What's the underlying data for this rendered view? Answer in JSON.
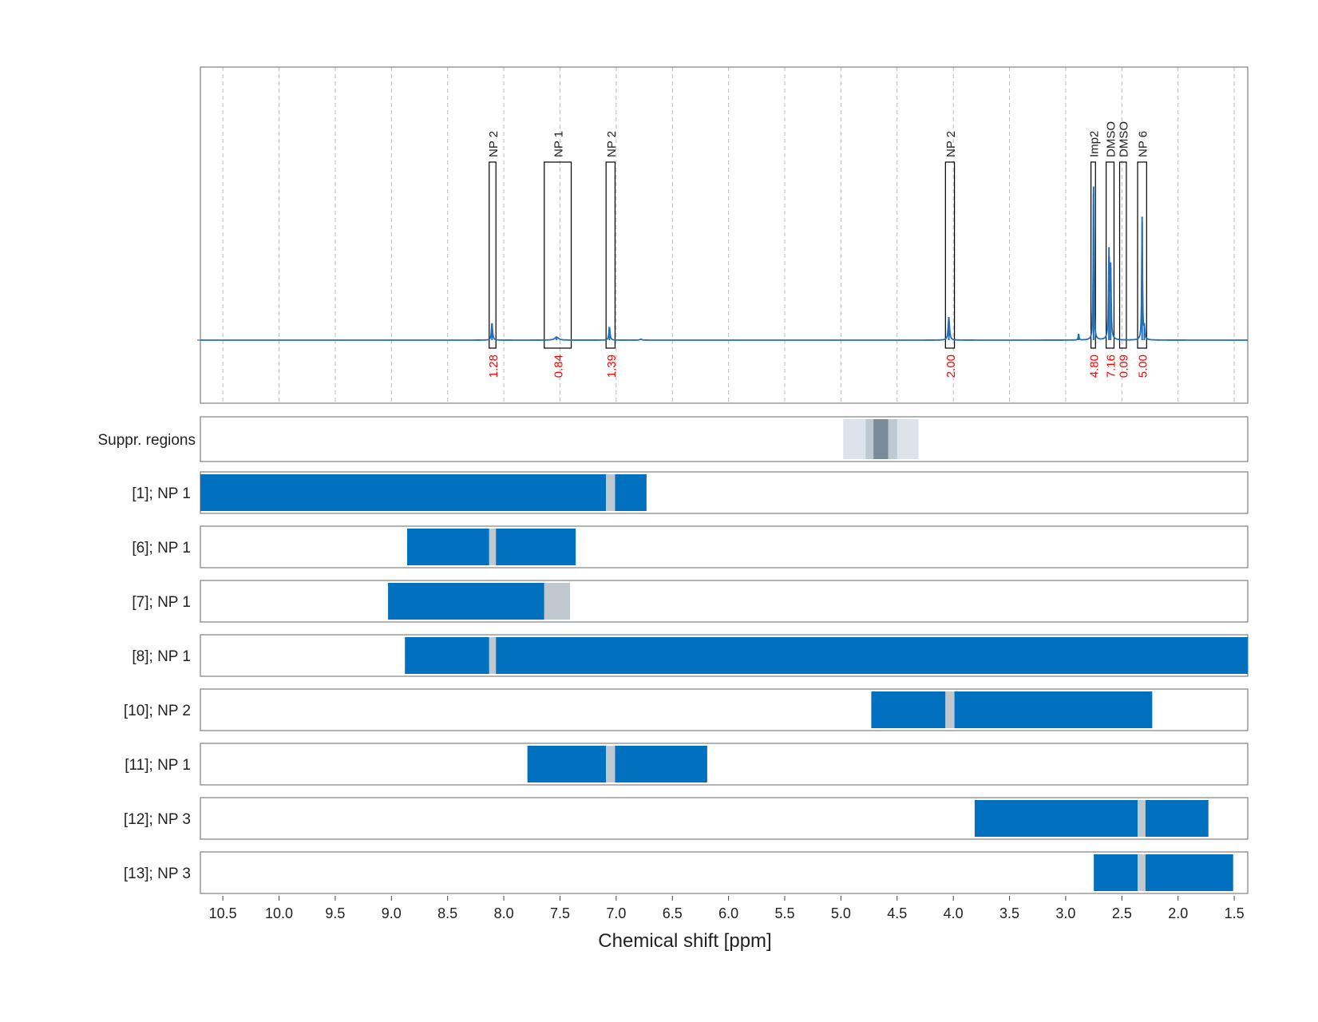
{
  "chart_data": {
    "type": "nmr-spectrum-with-range-bars",
    "xlabel": "Chemical shift [ppm]",
    "xlim": [
      10.7,
      1.38
    ],
    "x_reversed": true,
    "x_ticks": [
      10.5,
      10.0,
      9.5,
      9.0,
      8.5,
      8.0,
      7.5,
      7.0,
      6.5,
      6.0,
      5.5,
      5.0,
      4.5,
      4.0,
      3.5,
      3.0,
      2.5,
      2.0,
      1.5
    ],
    "x_tick_labels": [
      "10.5",
      "10.0",
      "9.5",
      "9.0",
      "8.5",
      "8.0",
      "7.5",
      "7.0",
      "6.5",
      "6.0",
      "5.5",
      "5.0",
      "4.5",
      "4.0",
      "3.5",
      "3.0",
      "2.5",
      "2.0",
      "1.5"
    ],
    "grid": "vertical-dashed",
    "colors": {
      "spectrum": "#1f6fba",
      "bar": "#0070bf",
      "gap": "#c0c8cf",
      "integral_label": "#ff0000",
      "suppr_light": "#dde3ea",
      "suppr_mid": "#bcc8d2",
      "suppr_dark": "#7a8a98",
      "frame": "#808080",
      "grid": "#bbbbbb"
    },
    "spectrum": {
      "baseline": 0,
      "peaks": [
        {
          "ppm": 8.105,
          "height": 0.11,
          "width": 0.006
        },
        {
          "ppm": 7.53,
          "height": 0.02,
          "width": 0.02
        },
        {
          "ppm": 7.06,
          "height": 0.085,
          "width": 0.006
        },
        {
          "ppm": 6.78,
          "height": 0.006,
          "width": 0.01
        },
        {
          "ppm": 4.04,
          "height": 0.15,
          "width": 0.007
        },
        {
          "ppm": 2.885,
          "height": 0.04,
          "width": 0.004
        },
        {
          "ppm": 2.752,
          "height": 1.0,
          "width": 0.004
        },
        {
          "ppm": 2.615,
          "height": 0.56,
          "width": 0.005
        },
        {
          "ppm": 2.6,
          "height": 0.45,
          "width": 0.005
        },
        {
          "ppm": 2.32,
          "height": 0.8,
          "width": 0.004
        },
        {
          "ppm": 2.3,
          "height": 0.08,
          "width": 0.005
        }
      ],
      "ymax": 1.3
    },
    "annotations": [
      {
        "label": "NP 2",
        "from": 8.13,
        "to": 8.07,
        "integral": "1.28"
      },
      {
        "label": "NP 1",
        "from": 7.64,
        "to": 7.4,
        "integral": "0.84"
      },
      {
        "label": "NP 2",
        "from": 7.09,
        "to": 7.01,
        "integral": "1.39"
      },
      {
        "label": "NP 2",
        "from": 4.07,
        "to": 3.99,
        "integral": "2.00"
      },
      {
        "label": "Imp2",
        "from": 2.775,
        "to": 2.735,
        "integral": "4.80"
      },
      {
        "label": "DMSO",
        "from": 2.64,
        "to": 2.57,
        "integral": "7.16"
      },
      {
        "label": "DMSO",
        "from": 2.52,
        "to": 2.46,
        "integral": "0.09"
      },
      {
        "label": "NP 6",
        "from": 2.36,
        "to": 2.28,
        "integral": "5.00"
      }
    ],
    "suppression": {
      "label": "Suppr. regions",
      "bands": [
        {
          "from": 4.98,
          "to": 4.31,
          "level": "light"
        },
        {
          "from": 4.78,
          "to": 4.5,
          "level": "mid"
        },
        {
          "from": 4.71,
          "to": 4.58,
          "level": "dark"
        }
      ]
    },
    "rows": [
      {
        "label": "[1]; NP 1",
        "segments": [
          {
            "from": 10.7,
            "to": 7.09,
            "kind": "bar"
          },
          {
            "from": 7.09,
            "to": 7.01,
            "kind": "gap"
          },
          {
            "from": 7.01,
            "to": 6.73,
            "kind": "bar"
          }
        ]
      },
      {
        "label": "[6]; NP 1",
        "segments": [
          {
            "from": 8.86,
            "to": 8.13,
            "kind": "bar"
          },
          {
            "from": 8.13,
            "to": 8.07,
            "kind": "gap"
          },
          {
            "from": 8.07,
            "to": 7.36,
            "kind": "bar"
          }
        ]
      },
      {
        "label": "[7]; NP 1",
        "segments": [
          {
            "from": 9.03,
            "to": 7.64,
            "kind": "bar"
          },
          {
            "from": 7.64,
            "to": 7.41,
            "kind": "gap"
          }
        ]
      },
      {
        "label": "[8]; NP 1",
        "segments": [
          {
            "from": 8.88,
            "to": 8.13,
            "kind": "bar"
          },
          {
            "from": 8.13,
            "to": 8.07,
            "kind": "gap"
          },
          {
            "from": 8.07,
            "to": 1.38,
            "kind": "bar"
          }
        ]
      },
      {
        "label": "[10]; NP 2",
        "segments": [
          {
            "from": 4.73,
            "to": 4.07,
            "kind": "bar"
          },
          {
            "from": 4.07,
            "to": 3.99,
            "kind": "gap"
          },
          {
            "from": 3.99,
            "to": 2.23,
            "kind": "bar"
          }
        ]
      },
      {
        "label": "[11]; NP 1",
        "segments": [
          {
            "from": 7.79,
            "to": 7.09,
            "kind": "bar"
          },
          {
            "from": 7.09,
            "to": 7.01,
            "kind": "gap"
          },
          {
            "from": 7.01,
            "to": 6.19,
            "kind": "bar"
          }
        ]
      },
      {
        "label": "[12]; NP 3",
        "segments": [
          {
            "from": 3.81,
            "to": 2.36,
            "kind": "bar"
          },
          {
            "from": 2.36,
            "to": 2.29,
            "kind": "gap"
          },
          {
            "from": 2.29,
            "to": 1.73,
            "kind": "bar"
          }
        ]
      },
      {
        "label": "[13]; NP 3",
        "segments": [
          {
            "from": 2.75,
            "to": 2.36,
            "kind": "bar"
          },
          {
            "from": 2.36,
            "to": 2.29,
            "kind": "gap"
          },
          {
            "from": 2.29,
            "to": 1.51,
            "kind": "bar"
          }
        ]
      }
    ]
  }
}
